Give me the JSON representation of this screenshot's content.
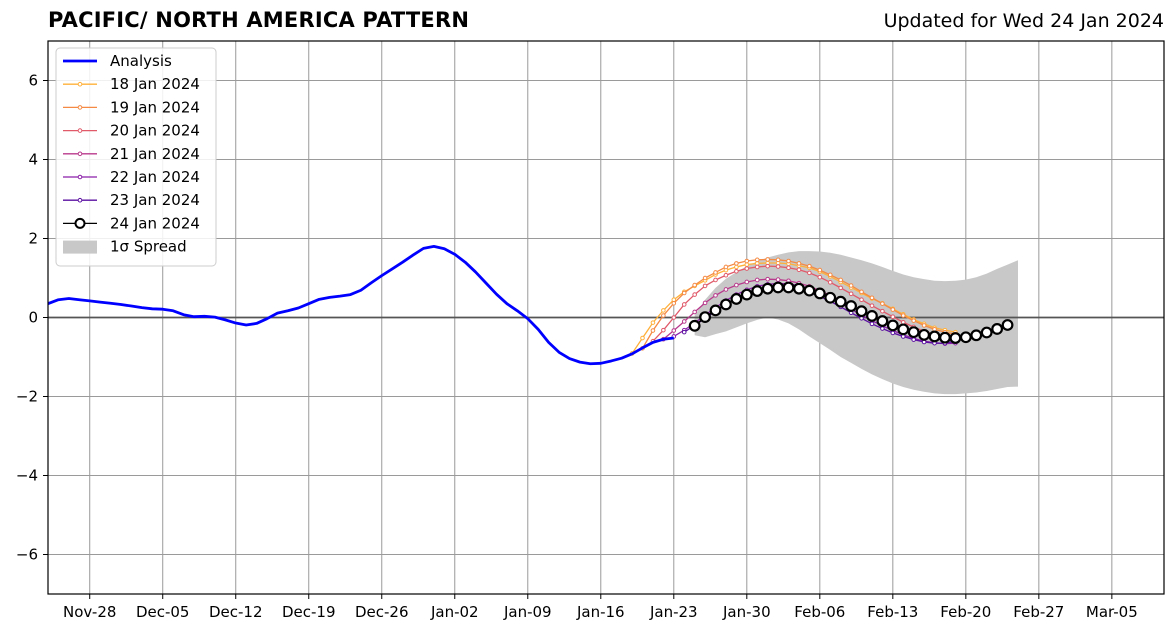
{
  "header": {
    "title": "PACIFIC/ NORTH AMERICA PATTERN",
    "subtitle": "Updated for Wed 24 Jan 2024"
  },
  "chart_data": {
    "type": "line",
    "title": "PACIFIC/ NORTH AMERICA PATTERN",
    "subtitle": "Updated for Wed 24 Jan 2024",
    "xlabel": "",
    "ylabel": "",
    "x_start": "2023-11-24",
    "x_end": "2024-03-10",
    "ylim": [
      -7,
      7
    ],
    "yticks": [
      -6,
      -4,
      -2,
      0,
      2,
      4,
      6
    ],
    "ytick_labels": [
      "−6",
      "−4",
      "−2",
      "0",
      "2",
      "4",
      "6"
    ],
    "xticks": [
      "2023-11-28",
      "2023-12-05",
      "2023-12-12",
      "2023-12-19",
      "2023-12-26",
      "2024-01-02",
      "2024-01-09",
      "2024-01-16",
      "2024-01-23",
      "2024-01-30",
      "2024-02-06",
      "2024-02-13",
      "2024-02-20",
      "2024-02-27",
      "2024-03-05"
    ],
    "xtick_labels": [
      "Nov-28",
      "Dec-05",
      "Dec-12",
      "Dec-19",
      "Dec-26",
      "Jan-02",
      "Jan-09",
      "Jan-16",
      "Jan-23",
      "Jan-30",
      "Feb-06",
      "Feb-13",
      "Feb-20",
      "Feb-27",
      "Mar-05"
    ],
    "grid": true,
    "legend_position": "top-left",
    "zero_line": 0,
    "analysis": {
      "name": "Analysis",
      "color": "#0000ff",
      "points": [
        [
          "2023-11-24",
          0.35
        ],
        [
          "2023-11-25",
          0.45
        ],
        [
          "2023-11-26",
          0.48
        ],
        [
          "2023-11-27",
          0.45
        ],
        [
          "2023-11-28",
          0.42
        ],
        [
          "2023-11-29",
          0.39
        ],
        [
          "2023-11-30",
          0.36
        ],
        [
          "2023-12-01",
          0.33
        ],
        [
          "2023-12-02",
          0.29
        ],
        [
          "2023-12-03",
          0.25
        ],
        [
          "2023-12-04",
          0.22
        ],
        [
          "2023-12-05",
          0.21
        ],
        [
          "2023-12-06",
          0.17
        ],
        [
          "2023-12-07",
          0.07
        ],
        [
          "2023-12-08",
          0.02
        ],
        [
          "2023-12-09",
          0.03
        ],
        [
          "2023-12-10",
          0.01
        ],
        [
          "2023-12-11",
          -0.06
        ],
        [
          "2023-12-12",
          -0.14
        ],
        [
          "2023-12-13",
          -0.19
        ],
        [
          "2023-12-14",
          -0.15
        ],
        [
          "2023-12-15",
          -0.03
        ],
        [
          "2023-12-16",
          0.11
        ],
        [
          "2023-12-17",
          0.17
        ],
        [
          "2023-12-18",
          0.24
        ],
        [
          "2023-12-19",
          0.35
        ],
        [
          "2023-12-20",
          0.46
        ],
        [
          "2023-12-21",
          0.51
        ],
        [
          "2023-12-22",
          0.54
        ],
        [
          "2023-12-23",
          0.58
        ],
        [
          "2023-12-24",
          0.69
        ],
        [
          "2023-12-25",
          0.88
        ],
        [
          "2023-12-26",
          1.06
        ],
        [
          "2023-12-27",
          1.23
        ],
        [
          "2023-12-28",
          1.4
        ],
        [
          "2023-12-29",
          1.58
        ],
        [
          "2023-12-30",
          1.75
        ],
        [
          "2023-12-31",
          1.8
        ],
        [
          "2024-01-01",
          1.74
        ],
        [
          "2024-01-02",
          1.6
        ],
        [
          "2024-01-03",
          1.4
        ],
        [
          "2024-01-04",
          1.15
        ],
        [
          "2024-01-05",
          0.87
        ],
        [
          "2024-01-06",
          0.59
        ],
        [
          "2024-01-07",
          0.35
        ],
        [
          "2024-01-08",
          0.17
        ],
        [
          "2024-01-09",
          -0.03
        ],
        [
          "2024-01-10",
          -0.3
        ],
        [
          "2024-01-11",
          -0.63
        ],
        [
          "2024-01-12",
          -0.88
        ],
        [
          "2024-01-13",
          -1.04
        ],
        [
          "2024-01-14",
          -1.13
        ],
        [
          "2024-01-15",
          -1.17
        ],
        [
          "2024-01-16",
          -1.16
        ],
        [
          "2024-01-17",
          -1.1
        ],
        [
          "2024-01-18",
          -1.03
        ],
        [
          "2024-01-19",
          -0.92
        ],
        [
          "2024-01-20",
          -0.77
        ],
        [
          "2024-01-21",
          -0.63
        ],
        [
          "2024-01-22",
          -0.55
        ],
        [
          "2024-01-23",
          -0.52
        ]
      ]
    },
    "series": [
      {
        "name": "18 Jan 2024",
        "color": "#ffb03a",
        "start": "2024-01-19",
        "values": [
          -0.91,
          -0.52,
          -0.13,
          0.18,
          0.45,
          0.65,
          0.8,
          0.94,
          1.09,
          1.2,
          1.28,
          1.34,
          1.37,
          1.38,
          1.38,
          1.36,
          1.31,
          1.26,
          1.16,
          1.04,
          0.9,
          0.76,
          0.62,
          0.48,
          0.36,
          0.22,
          0.08,
          -0.05,
          -0.16,
          -0.26,
          -0.32,
          -0.37
        ]
      },
      {
        "name": "19 Jan 2024",
        "color": "#f48a44",
        "start": "2024-01-20",
        "values": [
          -0.78,
          -0.33,
          0.05,
          0.36,
          0.62,
          0.82,
          1.0,
          1.14,
          1.28,
          1.37,
          1.43,
          1.46,
          1.47,
          1.46,
          1.43,
          1.37,
          1.3,
          1.2,
          1.08,
          0.95,
          0.81,
          0.65,
          0.5,
          0.35,
          0.2,
          0.05,
          -0.08,
          -0.2,
          -0.3,
          -0.37,
          -0.42
        ]
      },
      {
        "name": "20 Jan 2024",
        "color": "#e05a6a",
        "start": "2024-01-21",
        "values": [
          -0.6,
          -0.32,
          0.0,
          0.33,
          0.58,
          0.8,
          0.95,
          1.07,
          1.17,
          1.24,
          1.28,
          1.3,
          1.29,
          1.26,
          1.21,
          1.13,
          1.02,
          0.89,
          0.75,
          0.6,
          0.45,
          0.3,
          0.16,
          0.02,
          -0.12,
          -0.24,
          -0.35,
          -0.43,
          -0.5,
          -0.55
        ]
      },
      {
        "name": "21 Jan 2024",
        "color": "#b83a8c",
        "start": "2024-01-22",
        "values": [
          -0.55,
          -0.33,
          -0.1,
          0.14,
          0.37,
          0.56,
          0.71,
          0.82,
          0.9,
          0.95,
          0.97,
          0.96,
          0.93,
          0.87,
          0.79,
          0.68,
          0.56,
          0.43,
          0.3,
          0.17,
          0.03,
          -0.1,
          -0.22,
          -0.32,
          -0.41,
          -0.49,
          -0.54,
          -0.57,
          -0.58
        ]
      },
      {
        "name": "22 Jan 2024",
        "color": "#8a1fa8",
        "start": "2024-01-23",
        "values": [
          -0.48,
          -0.32,
          -0.14,
          0.06,
          0.25,
          0.43,
          0.58,
          0.7,
          0.79,
          0.84,
          0.86,
          0.85,
          0.81,
          0.73,
          0.63,
          0.5,
          0.36,
          0.21,
          0.06,
          -0.08,
          -0.21,
          -0.33,
          -0.44,
          -0.53,
          -0.6,
          -0.64,
          -0.66,
          -0.65
        ]
      },
      {
        "name": "23 Jan 2024",
        "color": "#5a0fa0",
        "start": "2024-01-24",
        "values": [
          -0.37,
          -0.2,
          -0.02,
          0.16,
          0.33,
          0.49,
          0.62,
          0.71,
          0.77,
          0.79,
          0.77,
          0.72,
          0.64,
          0.53,
          0.41,
          0.27,
          0.12,
          -0.02,
          -0.16,
          -0.28,
          -0.39,
          -0.48,
          -0.56,
          -0.62,
          -0.65,
          -0.65,
          -0.6,
          -0.5,
          -0.38
        ]
      },
      {
        "name": "24 Jan 2024",
        "color": "#000000",
        "start": "2024-01-25",
        "values": [
          -0.21,
          0.01,
          0.18,
          0.33,
          0.47,
          0.58,
          0.67,
          0.73,
          0.76,
          0.76,
          0.73,
          0.68,
          0.61,
          0.5,
          0.4,
          0.29,
          0.16,
          0.04,
          -0.09,
          -0.2,
          -0.3,
          -0.37,
          -0.44,
          -0.48,
          -0.51,
          -0.52,
          -0.5,
          -0.45,
          -0.38,
          -0.29,
          -0.19
        ]
      }
    ],
    "spread": {
      "name": "1σ Spread",
      "color": "#c8c8c8",
      "start": "2024-01-25",
      "upper": [
        0.05,
        0.45,
        0.75,
        0.98,
        1.15,
        1.3,
        1.42,
        1.52,
        1.59,
        1.65,
        1.68,
        1.68,
        1.67,
        1.64,
        1.59,
        1.52,
        1.45,
        1.37,
        1.28,
        1.18,
        1.09,
        1.02,
        0.97,
        0.93,
        0.92,
        0.93,
        0.96,
        1.02,
        1.11,
        1.23,
        1.34,
        1.45
      ],
      "lower": [
        -0.45,
        -0.5,
        -0.42,
        -0.35,
        -0.25,
        -0.15,
        -0.06,
        0.0,
        -0.05,
        -0.15,
        -0.3,
        -0.48,
        -0.65,
        -0.82,
        -1.0,
        -1.15,
        -1.3,
        -1.44,
        -1.56,
        -1.67,
        -1.76,
        -1.83,
        -1.88,
        -1.92,
        -1.94,
        -1.94,
        -1.92,
        -1.9,
        -1.86,
        -1.81,
        -1.76,
        -1.75
      ]
    }
  }
}
